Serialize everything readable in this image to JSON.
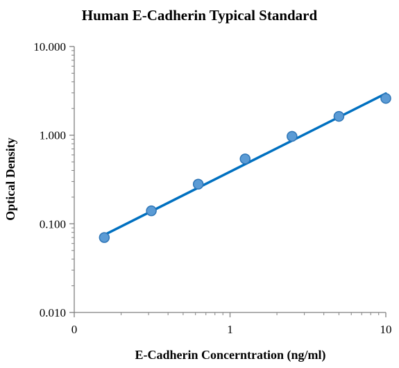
{
  "chart_data": {
    "type": "scatter",
    "title": "Human E-Cadherin Typical Standard",
    "xlabel": "E-Cadherin Concerntration (ng/ml)",
    "ylabel": "Optical Density",
    "x_scale": "log",
    "y_scale": "log",
    "xlim": [
      0.1,
      10
    ],
    "ylim": [
      0.01,
      10
    ],
    "x_ticks": [
      {
        "value": 0.1,
        "label": "0"
      },
      {
        "value": 1,
        "label": "1"
      },
      {
        "value": 10,
        "label": "10"
      }
    ],
    "y_ticks": [
      {
        "value": 0.01,
        "label": "0.010"
      },
      {
        "value": 0.1,
        "label": "0.100"
      },
      {
        "value": 1,
        "label": "1.000"
      },
      {
        "value": 10,
        "label": "10.000"
      }
    ],
    "grid": false,
    "legend": "none",
    "series": [
      {
        "points": [
          {
            "x": 0.156,
            "y": 0.07
          },
          {
            "x": 0.3125,
            "y": 0.14
          },
          {
            "x": 0.625,
            "y": 0.28
          },
          {
            "x": 1.25,
            "y": 0.54
          },
          {
            "x": 2.5,
            "y": 0.97
          },
          {
            "x": 5,
            "y": 1.63
          },
          {
            "x": 10,
            "y": 2.6
          }
        ],
        "marker_color": "#5B9BD5",
        "marker_edge_color": "#2E75B6"
      }
    ],
    "trendline": {
      "type": "power",
      "points": [
        {
          "x": 0.156,
          "y": 0.075
        },
        {
          "x": 10,
          "y": 2.95
        }
      ],
      "color": "#0070C0"
    }
  }
}
